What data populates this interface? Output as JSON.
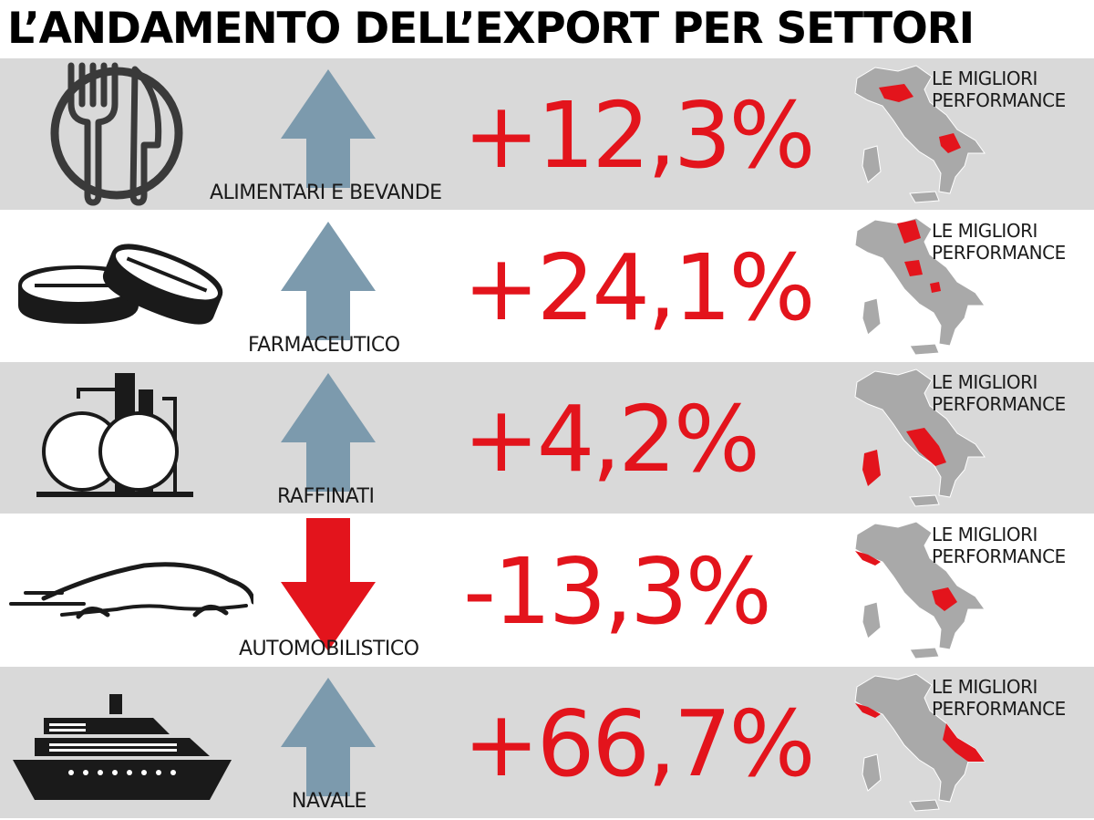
{
  "title": "L’ANDAMENTO DELL’EXPORT PER SETTORI",
  "colors": {
    "accent_red": "#e3141c",
    "arrow_up": "#7c9aad",
    "row_grey": "#d9d9d9",
    "map_grey": "#a9a9a9"
  },
  "sectors": [
    {
      "label": "ALIMENTARI E BEVANDE",
      "value": "+12,3%",
      "direction": "up",
      "icon": "plate-fork-knife-icon",
      "perf_line1": "LE MIGLIORI",
      "perf_line2": "PERFORMANCE"
    },
    {
      "label": "FARMACEUTICO",
      "value": "+24,1%",
      "direction": "up",
      "icon": "pills-icon",
      "perf_line1": "LE MIGLIORI",
      "perf_line2": "PERFORMANCE"
    },
    {
      "label": "RAFFINATI",
      "value": "+4,2%",
      "direction": "up",
      "icon": "refinery-tanks-icon",
      "perf_line1": "LE MIGLIORI",
      "perf_line2": "PERFORMANCE"
    },
    {
      "label": "AUTOMOBILISTICO",
      "value": "-13,3%",
      "direction": "down",
      "icon": "car-icon",
      "perf_line1": "LE MIGLIORI",
      "perf_line2": "PERFORMANCE"
    },
    {
      "label": "NAVALE",
      "value": "+66,7%",
      "direction": "up",
      "icon": "ship-icon",
      "perf_line1": "LE MIGLIORI",
      "perf_line2": "PERFORMANCE"
    }
  ]
}
